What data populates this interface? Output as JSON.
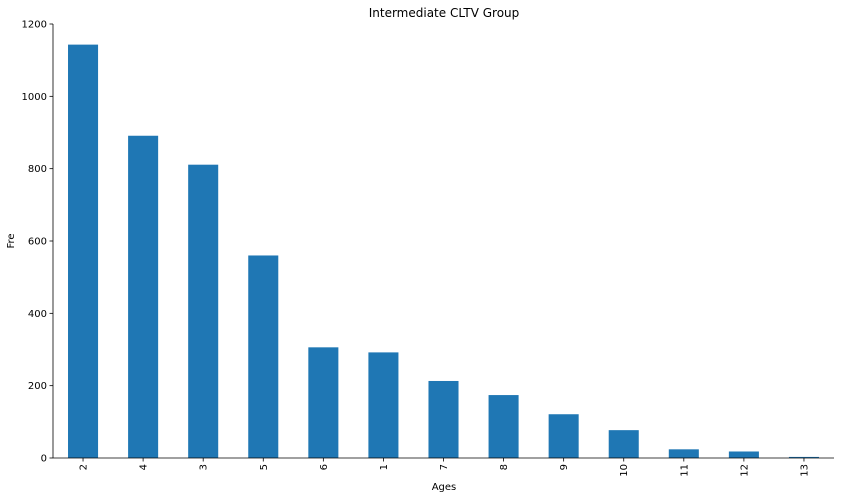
{
  "chart_data": {
    "type": "bar",
    "title": "Intermediate CLTV Group",
    "xlabel": "Ages",
    "ylabel": "Fre",
    "categories": [
      "2",
      "4",
      "3",
      "5",
      "6",
      "1",
      "7",
      "8",
      "9",
      "10",
      "11",
      "12",
      "13"
    ],
    "values": [
      1143,
      891,
      811,
      560,
      306,
      292,
      213,
      174,
      121,
      77,
      24,
      18,
      3
    ],
    "ylim": [
      0,
      1200
    ],
    "yticks": [
      "0",
      "200",
      "400",
      "600",
      "800",
      "1000",
      "1200"
    ],
    "bar_color": "#1f77b4",
    "grid": false,
    "legend": "none"
  }
}
